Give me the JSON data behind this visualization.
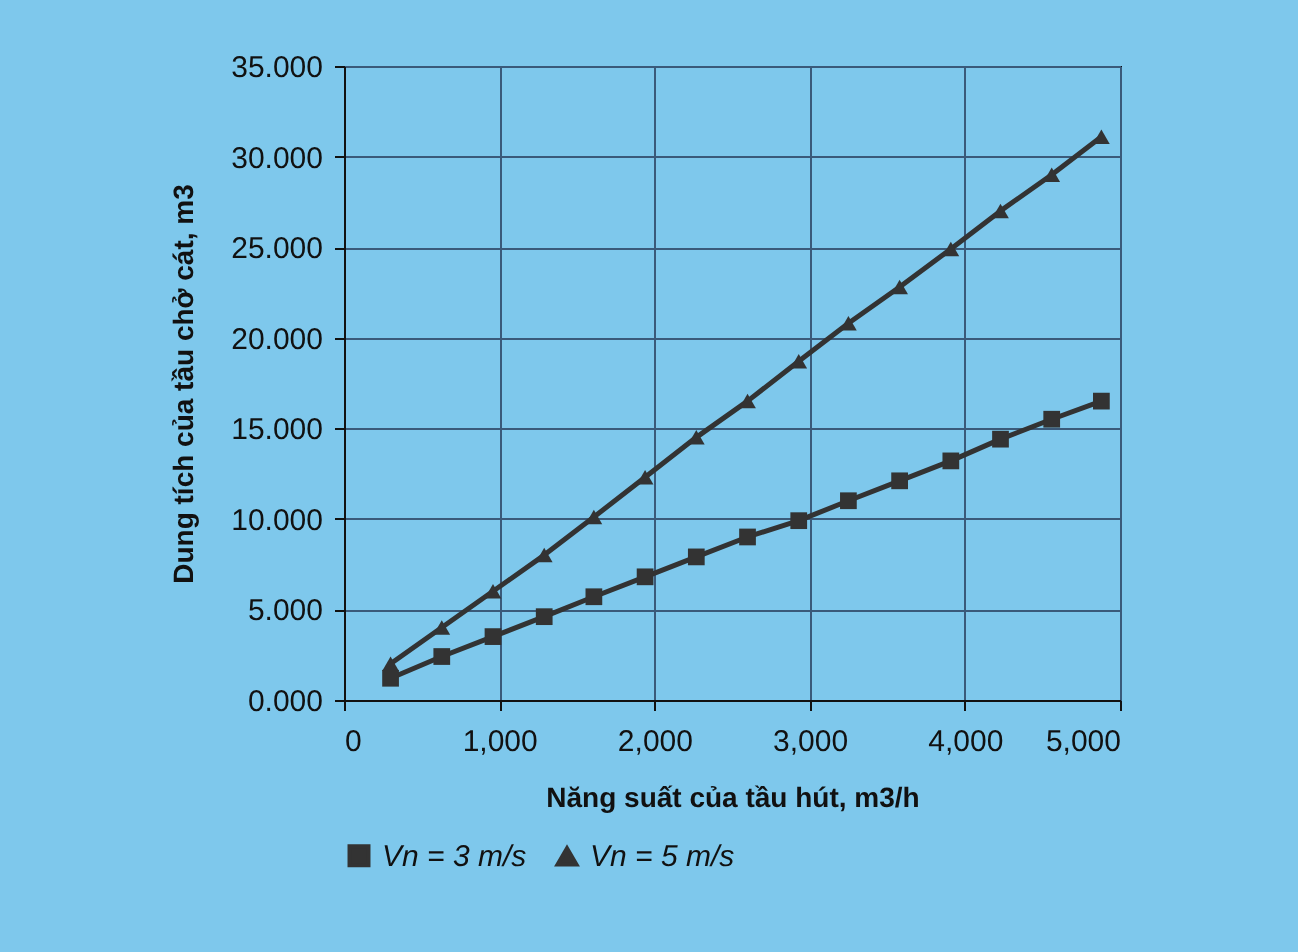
{
  "chart_data": {
    "type": "line",
    "xlabel": "Năng suất của tầu hút, m3/h",
    "ylabel": "Dung tích của tầu chở cát, m3",
    "x": [
      300,
      630,
      960,
      1290,
      1610,
      1940,
      2270,
      2600,
      2930,
      3250,
      3580,
      3910,
      4230,
      4560,
      4880
    ],
    "series": [
      {
        "name": "Vn = 3 m/s",
        "color": "#333333",
        "marker": "square",
        "values": [
          1.2,
          2.4,
          3.5,
          4.6,
          5.7,
          6.8,
          7.9,
          9.0,
          9.9,
          11.0,
          12.1,
          13.2,
          14.4,
          15.5,
          16.5
        ]
      },
      {
        "name": "Vn = 5 m/s",
        "color": "#333333",
        "marker": "triangle",
        "values": [
          2.0,
          4.0,
          6.0,
          8.0,
          10.1,
          12.3,
          14.5,
          16.5,
          18.7,
          20.8,
          22.8,
          24.9,
          27.0,
          29.0,
          31.1
        ]
      }
    ],
    "xlim": [
      0,
      5000
    ],
    "ylim": [
      0,
      35
    ],
    "xticks": [
      0,
      {
        "value": 1000,
        "label": "1,000"
      },
      {
        "value": 2000,
        "label": "2,000"
      },
      {
        "value": 3000,
        "label": "3,000"
      },
      {
        "value": 4000,
        "label": "4,000"
      },
      {
        "value": 5000,
        "label": "5,000"
      }
    ],
    "yticks": [
      {
        "value": 0,
        "label": "0.000"
      },
      {
        "value": 5,
        "label": "5.000"
      },
      {
        "value": 10,
        "label": "10.000"
      },
      {
        "value": 15,
        "label": "15.000"
      },
      {
        "value": 20,
        "label": "20.000"
      },
      {
        "value": 25,
        "label": "25.000"
      },
      {
        "value": 30,
        "label": "30.000"
      },
      {
        "value": 35,
        "label": "35.000"
      }
    ],
    "grid": true,
    "legend": "bottom",
    "line_style": "solid"
  }
}
